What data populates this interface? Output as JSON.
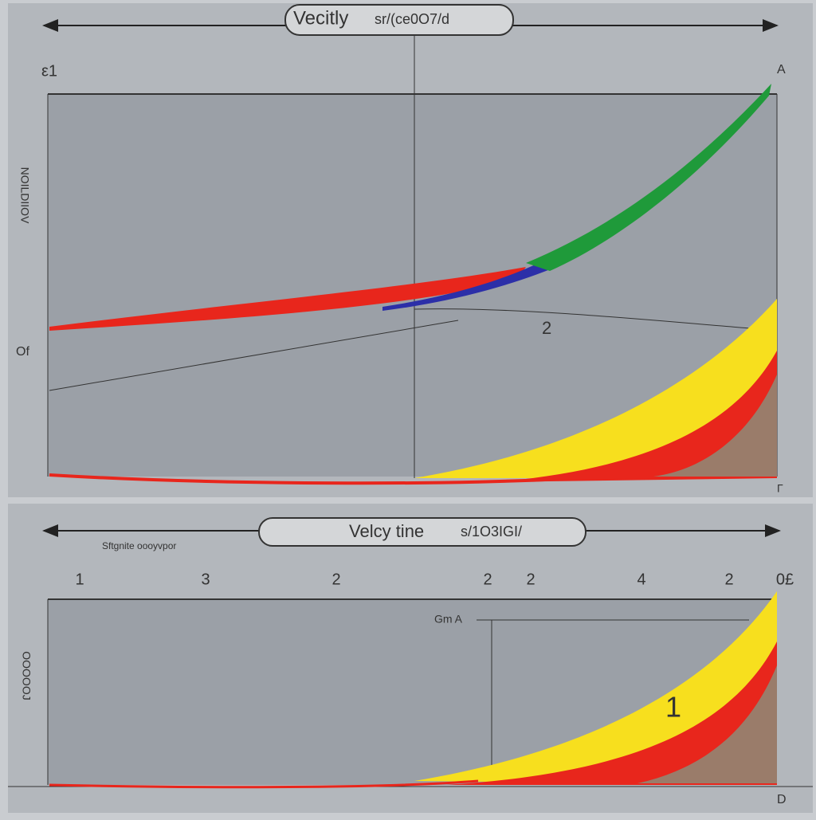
{
  "top_panel": {
    "title": "Vecitly",
    "subtitle": "sr/(ce0O7/d",
    "corner_label": "ε1",
    "end_label": "A",
    "curve_label": "2",
    "side_label": "Of",
    "y_axis_label": "NOILDIIOV",
    "bottom_label": "Г"
  },
  "bottom_panel": {
    "title": "Velcy tine",
    "subtitle": "s/1O3IGI/",
    "note": "Sftgnite oooyvpor",
    "ticks": [
      "1",
      "3",
      "2",
      "2",
      "2",
      "4",
      "2",
      "0£"
    ],
    "marker_label": "Gm A",
    "area_label": "1",
    "y_axis_label": "OOOOOJ",
    "bottom_label": "D"
  }
}
